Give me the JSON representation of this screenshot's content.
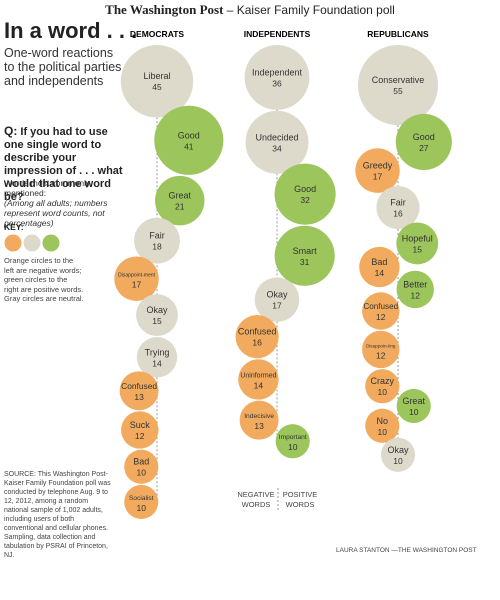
{
  "header": {
    "paper": "The Washington Post",
    "poll": "– Kaiser Family Foundation poll"
  },
  "title": "In a word . . .",
  "subtitle": "One-word reactions to the political parties and independents",
  "question": {
    "label": "Q:",
    "text": "If you had to use one single word to describe your impression of . . . what would that one word be?"
  },
  "words_heading": "Words most commonly mentioned:",
  "note": "(Among all adults; numbers represent word counts, not percentages)",
  "key": {
    "title": "KEY:",
    "colors": [
      "#f2ab5e",
      "#dedacb",
      "#9cc65c"
    ],
    "text": "Orange circles to the left are negative words; green circles to the right are positive words. Gray circles are neutral."
  },
  "columns": [
    {
      "title": "DEMOCRATS",
      "words": [
        {
          "label": "Liberal",
          "count": 45,
          "color": "#dedacb"
        },
        {
          "label": "Good",
          "count": 41,
          "color": "#9cc65c"
        },
        {
          "label": "Great",
          "count": 21,
          "color": "#9cc65c"
        },
        {
          "label": "Fair",
          "count": 18,
          "color": "#dedacb"
        },
        {
          "label": "Disappoint-ment",
          "count": 17,
          "color": "#f2ab5e"
        },
        {
          "label": "Okay",
          "count": 15,
          "color": "#dedacb"
        },
        {
          "label": "Trying",
          "count": 14,
          "color": "#dedacb"
        },
        {
          "label": "Confused",
          "count": 13,
          "color": "#f2ab5e"
        },
        {
          "label": "Suck",
          "count": 12,
          "color": "#f2ab5e"
        },
        {
          "label": "Bad",
          "count": 10,
          "color": "#f2ab5e"
        },
        {
          "label": "Socialist",
          "count": 10,
          "color": "#f2ab5e"
        }
      ]
    },
    {
      "title": "INDEPENDENTS",
      "words": [
        {
          "label": "Independent",
          "count": 36,
          "color": "#dedacb"
        },
        {
          "label": "Undecided",
          "count": 34,
          "color": "#dedacb"
        },
        {
          "label": "Good",
          "count": 32,
          "color": "#9cc65c"
        },
        {
          "label": "Smart",
          "count": 31,
          "color": "#9cc65c"
        },
        {
          "label": "Okay",
          "count": 17,
          "color": "#dedacb"
        },
        {
          "label": "Confused",
          "count": 16,
          "color": "#f2ab5e"
        },
        {
          "label": "Uninformed",
          "count": 14,
          "color": "#f2ab5e"
        },
        {
          "label": "Indecisive",
          "count": 13,
          "color": "#f2ab5e"
        },
        {
          "label": "Important",
          "count": 10,
          "color": "#9cc65c"
        }
      ]
    },
    {
      "title": "REPUBLICANS",
      "words": [
        {
          "label": "Conservative",
          "count": 55,
          "color": "#dedacb"
        },
        {
          "label": "Good",
          "count": 27,
          "color": "#9cc65c"
        },
        {
          "label": "Greedy",
          "count": 17,
          "color": "#f2ab5e"
        },
        {
          "label": "Fair",
          "count": 16,
          "color": "#dedacb"
        },
        {
          "label": "Hopeful",
          "count": 15,
          "color": "#9cc65c"
        },
        {
          "label": "Bad",
          "count": 14,
          "color": "#f2ab5e"
        },
        {
          "label": "Better",
          "count": 12,
          "color": "#9cc65c"
        },
        {
          "label": "Confused",
          "count": 12,
          "color": "#f2ab5e"
        },
        {
          "label": "Disappoin-ting",
          "count": 12,
          "color": "#f2ab5e"
        },
        {
          "label": "Crazy",
          "count": 10,
          "color": "#f2ab5e"
        },
        {
          "label": "Great",
          "count": 10,
          "color": "#9cc65c"
        },
        {
          "label": "No",
          "count": 10,
          "color": "#f2ab5e"
        },
        {
          "label": "Okay",
          "count": 10,
          "color": "#dedacb"
        }
      ]
    }
  ],
  "side_labels": {
    "negative": "NEGATIVE WORDS",
    "positive": "POSITIVE WORDS"
  },
  "source": "SOURCE: This Washington Post-Kaiser Family Foundation poll was conducted by telephone Aug. 9 to 12, 2012, among a random national sample of 1,002 adults, including users of both conventional and cellular phones. Sampling, data collection and tabulation by PSRAI of Princeton, NJ.",
  "credit": "LAURA STANTON —THE WASHINGTON POST"
}
